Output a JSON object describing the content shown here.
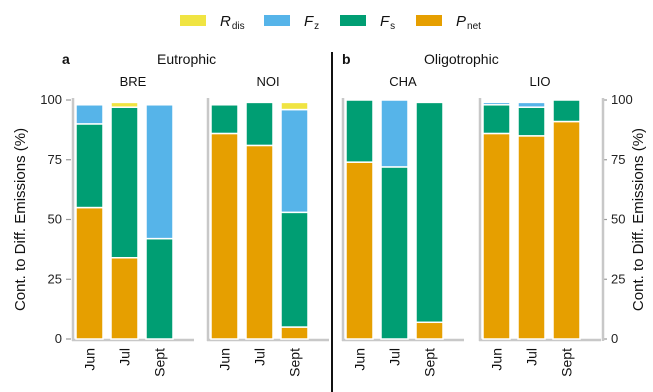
{
  "chart_data": {
    "type": "bar",
    "stacked": true,
    "ylabel": "Cont. to Diff. Emissions (%)",
    "ylim": [
      0,
      100
    ],
    "yticks": [
      0,
      25,
      50,
      75,
      100
    ],
    "categories": [
      "Jun",
      "Jul",
      "Sept"
    ],
    "legend_position": "top",
    "series": [
      {
        "key": "P",
        "name": "P",
        "sub": "net",
        "color": "#E69F00"
      },
      {
        "key": "Fs",
        "name": "F",
        "sub": "s",
        "color": "#009E73"
      },
      {
        "key": "Fz",
        "name": "F",
        "sub": "z",
        "color": "#56B4E9"
      },
      {
        "key": "R",
        "name": "R",
        "sub": "dis",
        "color": "#F0E442"
      }
    ],
    "legend_order": [
      "R",
      "Fz",
      "Fs",
      "P"
    ],
    "groups": [
      {
        "letter": "a",
        "title": "Eutrophic",
        "sites": [
          {
            "name": "BRE",
            "stacks": {
              "P": [
                55,
                34,
                0
              ],
              "Fs": [
                35,
                63,
                42
              ],
              "Fz": [
                8,
                0,
                56
              ],
              "R": [
                0,
                2,
                0
              ]
            }
          },
          {
            "name": "NOI",
            "stacks": {
              "P": [
                86,
                81,
                5
              ],
              "Fs": [
                12,
                18,
                48
              ],
              "Fz": [
                0,
                0,
                43
              ],
              "R": [
                0,
                0,
                3
              ]
            }
          }
        ]
      },
      {
        "letter": "b",
        "title": "Oligotrophic",
        "sites": [
          {
            "name": "CHA",
            "stacks": {
              "P": [
                74,
                0,
                7
              ],
              "Fs": [
                26,
                72,
                92
              ],
              "Fz": [
                0,
                28,
                0
              ],
              "R": [
                0,
                0,
                0
              ]
            }
          },
          {
            "name": "LIO",
            "stacks": {
              "P": [
                86,
                85,
                91
              ],
              "Fs": [
                12,
                12,
                9
              ],
              "Fz": [
                1,
                2,
                0
              ],
              "R": [
                0,
                0,
                0
              ]
            }
          }
        ]
      }
    ]
  }
}
